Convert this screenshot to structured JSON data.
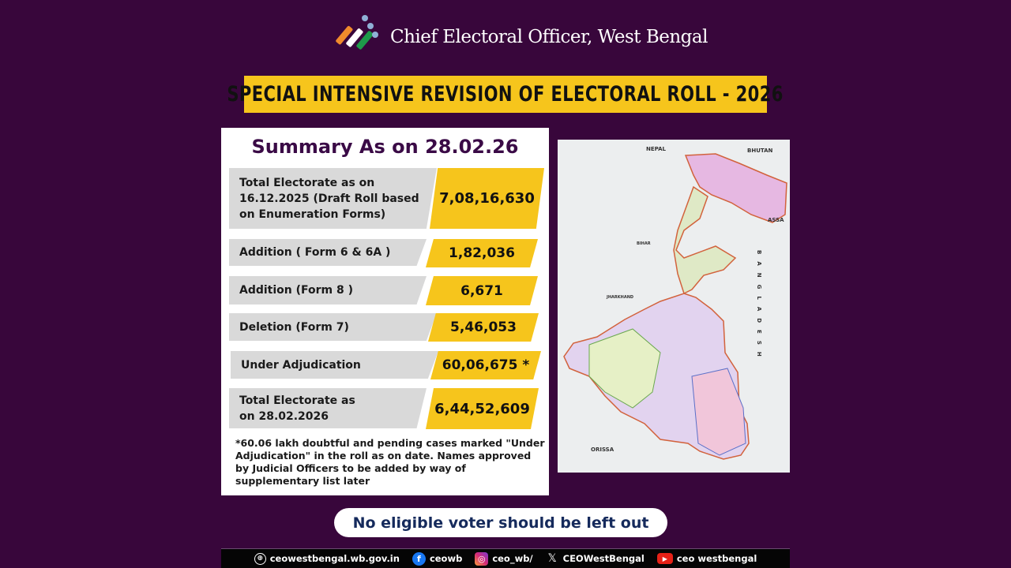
{
  "header": {
    "organization": "Chief Electoral Officer, West Bengal",
    "logo_icon": "ballot-tick-logo"
  },
  "banner": {
    "title": "SPECIAL INTENSIVE REVISION OF ELECTORAL ROLL - 2026"
  },
  "summary": {
    "title": "Summary As on 28.02.26",
    "rows": [
      {
        "label": "Total Electorate as on 16.12.2025 (Draft Roll based on Enumeration Forms)",
        "value": "7,08,16,630"
      },
      {
        "label": "Addition ( Form 6 & 6A )",
        "value": "1,82,036"
      },
      {
        "label": "Addition (Form 8 )",
        "value": "6,671"
      },
      {
        "label": "Deletion (Form 7)",
        "value": "5,46,053"
      },
      {
        "label": "Under Adjudication",
        "value": "60,06,675 *"
      },
      {
        "label": "Total  Electorate as on 28.02.2026",
        "value": "6,44,52,609"
      }
    ],
    "footnote": "*60.06 lakh doubtful and pending cases marked \"Under Adjudication\" in the roll as on date. Names approved by Judicial Officers to be added by way of supplementary list later"
  },
  "map": {
    "labels": {
      "nepal": "NEPAL",
      "bhutan": "BHUTAN",
      "bangladesh": "BANGLADESH",
      "orissa": "ORISSA",
      "jharkhand": "JHARKHAND",
      "bihar": "BIHAR",
      "assam": "ASSA"
    }
  },
  "slogan": "No eligible voter should be left out",
  "footer": {
    "items": [
      {
        "icon": "globe-icon",
        "text": "ceowestbengal.wb.gov.in"
      },
      {
        "icon": "facebook-icon",
        "text": "ceowb"
      },
      {
        "icon": "instagram-icon",
        "text": "ceo_wb/"
      },
      {
        "icon": "x-icon",
        "text": "CEOWestBengal"
      },
      {
        "icon": "youtube-icon",
        "text": "ceo westbengal"
      }
    ]
  },
  "colors": {
    "background": "#38063b",
    "accent_yellow": "#f6c51c",
    "title_purple": "#3a0a46",
    "slogan_navy": "#152a5c"
  }
}
